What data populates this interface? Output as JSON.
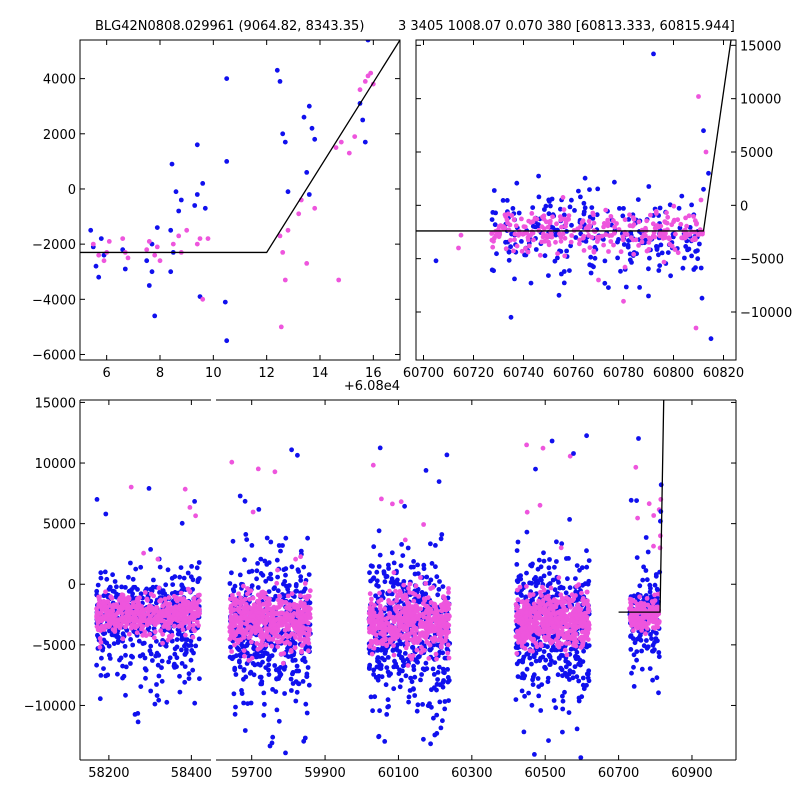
{
  "chart_data": [
    {
      "name": "zoom-panel",
      "type": "scatter",
      "title": "BLG42N0808.029961 (9064.82, 8343.35)",
      "offset_label": "+6.08e4",
      "xlim": [
        5,
        17
      ],
      "ylim": [
        -6200,
        5400
      ],
      "xticks": [
        {
          "value": 6,
          "label": "6"
        },
        {
          "value": 8,
          "label": "8"
        },
        {
          "value": 10,
          "label": "10"
        },
        {
          "value": 12,
          "label": "12"
        },
        {
          "value": 14,
          "label": "14"
        },
        {
          "value": 16,
          "label": "16"
        }
      ],
      "yticks": [
        {
          "value": -6000,
          "label": "−6000"
        },
        {
          "value": -4000,
          "label": "−4000"
        },
        {
          "value": -2000,
          "label": "−2000"
        },
        {
          "value": 0,
          "label": "0"
        },
        {
          "value": 2000,
          "label": "2000"
        },
        {
          "value": 4000,
          "label": "4000"
        }
      ],
      "model": {
        "x": [
          5,
          12,
          17
        ],
        "y": [
          -2300,
          -2300,
          5400
        ]
      },
      "series": [
        {
          "name": "blue",
          "color": "#1010ee",
          "points": [
            [
              5.4,
              -1500
            ],
            [
              5.5,
              -2100
            ],
            [
              5.6,
              -2800
            ],
            [
              5.7,
              -3200
            ],
            [
              5.8,
              -1800
            ],
            [
              5.9,
              -2400
            ],
            [
              6.6,
              -2200
            ],
            [
              6.7,
              -2900
            ],
            [
              7.5,
              -2600
            ],
            [
              7.6,
              -3500
            ],
            [
              7.7,
              -3000
            ],
            [
              7.8,
              -4600
            ],
            [
              7.9,
              -1400
            ],
            [
              7.7,
              -2000
            ],
            [
              8.4,
              -1500
            ],
            [
              8.5,
              -2300
            ],
            [
              8.6,
              -100
            ],
            [
              8.7,
              -800
            ],
            [
              8.8,
              -400
            ],
            [
              8.4,
              -3000
            ],
            [
              8.45,
              900
            ],
            [
              9.3,
              -600
            ],
            [
              9.4,
              -200
            ],
            [
              9.5,
              -3900
            ],
            [
              9.6,
              200
            ],
            [
              9.7,
              -700
            ],
            [
              9.4,
              1600
            ],
            [
              10.45,
              -4100
            ],
            [
              10.5,
              -5500
            ],
            [
              10.5,
              1000
            ],
            [
              10.5,
              4000
            ],
            [
              12.4,
              4300
            ],
            [
              12.6,
              2000
            ],
            [
              12.7,
              1700
            ],
            [
              12.8,
              -100
            ],
            [
              12.5,
              3900
            ],
            [
              13.4,
              2600
            ],
            [
              13.5,
              600
            ],
            [
              13.6,
              3000
            ],
            [
              13.7,
              2200
            ],
            [
              13.8,
              1800
            ],
            [
              13.6,
              -200
            ],
            [
              15.6,
              2500
            ],
            [
              15.7,
              1700
            ],
            [
              15.5,
              3100
            ],
            [
              15.8,
              5400
            ]
          ]
        },
        {
          "name": "pink",
          "color": "#ee55dd",
          "points": [
            [
              5.5,
              -2000
            ],
            [
              5.7,
              -2400
            ],
            [
              5.9,
              -2600
            ],
            [
              6.0,
              -2300
            ],
            [
              6.1,
              -1900
            ],
            [
              6.6,
              -1800
            ],
            [
              6.7,
              -2300
            ],
            [
              6.8,
              -2500
            ],
            [
              7.5,
              -2200
            ],
            [
              7.6,
              -1900
            ],
            [
              7.8,
              -2400
            ],
            [
              7.9,
              -2100
            ],
            [
              8.0,
              -2600
            ],
            [
              8.5,
              -2000
            ],
            [
              8.7,
              -1700
            ],
            [
              8.8,
              -2300
            ],
            [
              9.0,
              -1500
            ],
            [
              9.4,
              -2000
            ],
            [
              9.5,
              -1800
            ],
            [
              9.6,
              -4000
            ],
            [
              9.8,
              -1800
            ],
            [
              12.5,
              -1700
            ],
            [
              12.6,
              -2300
            ],
            [
              12.7,
              -3300
            ],
            [
              12.55,
              -5000
            ],
            [
              12.8,
              -1500
            ],
            [
              13.2,
              -900
            ],
            [
              13.3,
              -400
            ],
            [
              13.5,
              -2700
            ],
            [
              13.8,
              -700
            ],
            [
              14.6,
              1500
            ],
            [
              14.7,
              -3300
            ],
            [
              14.8,
              1700
            ],
            [
              15.1,
              1300
            ],
            [
              15.3,
              1900
            ],
            [
              15.5,
              3600
            ],
            [
              15.7,
              3900
            ],
            [
              15.8,
              4100
            ],
            [
              15.9,
              4200
            ],
            [
              16.0,
              3800
            ]
          ]
        }
      ]
    },
    {
      "name": "mid-panel",
      "type": "scatter",
      "title": "3 3405 1008.07 0.070 380 [60813.333, 60815.944]",
      "xlim": [
        60697,
        60825
      ],
      "ylim": [
        -14500,
        15500
      ],
      "xticks": [
        {
          "value": 60700,
          "label": "60700"
        },
        {
          "value": 60720,
          "label": "60720"
        },
        {
          "value": 60740,
          "label": "60740"
        },
        {
          "value": 60760,
          "label": "60760"
        },
        {
          "value": 60780,
          "label": "60780"
        },
        {
          "value": 60800,
          "label": "60800"
        },
        {
          "value": 60820,
          "label": "60820"
        }
      ],
      "yticks": [
        {
          "value": -10000,
          "label": "−10000"
        },
        {
          "value": -5000,
          "label": "−5000"
        },
        {
          "value": 0,
          "label": "0"
        },
        {
          "value": 5000,
          "label": "5000"
        },
        {
          "value": 10000,
          "label": "10000"
        },
        {
          "value": 15000,
          "label": "15000"
        }
      ],
      "model": {
        "x": [
          60697,
          60812,
          60823
        ],
        "y": [
          -2400,
          -2400,
          15500
        ]
      },
      "cloud": {
        "x_range": [
          60727,
          60812
        ],
        "center": -2500,
        "spread": 2200,
        "count": 260,
        "outlier_low": -10000,
        "outlier_high": 4000
      },
      "extra_points": [
        [
          60792,
          14200
        ],
        [
          60810,
          10200
        ],
        [
          60812,
          7000
        ],
        [
          60813,
          5000
        ],
        [
          60814,
          3000
        ],
        [
          60811,
          500
        ],
        [
          60812,
          1500
        ],
        [
          60780,
          -9000
        ],
        [
          60790,
          -8500
        ],
        [
          60770,
          -7000
        ],
        [
          60735,
          -10500
        ],
        [
          60809,
          -11500
        ],
        [
          60815,
          -12500
        ],
        [
          60714,
          -4000
        ],
        [
          60705,
          -5200
        ],
        [
          60715,
          -2800
        ]
      ]
    },
    {
      "name": "full-panel",
      "type": "scatter",
      "xlim": [
        58130,
        61020
      ],
      "ylim": [
        -14500,
        15200
      ],
      "xticks": [
        {
          "value": 58200,
          "label": "58200"
        },
        {
          "value": 58400,
          "label": "58400"
        },
        {
          "value": 59700,
          "label": "59700"
        },
        {
          "value": 59900,
          "label": "59900"
        },
        {
          "value": 60100,
          "label": "60100"
        },
        {
          "value": 60300,
          "label": "60300"
        },
        {
          "value": 60500,
          "label": "60500"
        },
        {
          "value": 60700,
          "label": "60700"
        },
        {
          "value": 60900,
          "label": "60900"
        }
      ],
      "yticks": [
        {
          "value": -10000,
          "label": "−10000"
        },
        {
          "value": -5000,
          "label": "−5000"
        },
        {
          "value": 0,
          "label": "0"
        },
        {
          "value": 5000,
          "label": "5000"
        },
        {
          "value": 10000,
          "label": "10000"
        },
        {
          "value": 15000,
          "label": "15000"
        }
      ],
      "model": {
        "x": [
          60700,
          60813,
          60823
        ],
        "y": [
          -2300,
          -2300,
          15200
        ]
      },
      "seasons": [
        {
          "x": [
            58170,
            58420
          ],
          "center": -2500,
          "spread": 1800,
          "count": 500
        },
        {
          "x": [
            59640,
            59860
          ],
          "center": -3000,
          "spread": 2600,
          "count": 500
        },
        {
          "x": [
            60020,
            60240
          ],
          "center": -3200,
          "spread": 2800,
          "count": 500
        },
        {
          "x": [
            60420,
            60620
          ],
          "center": -3000,
          "spread": 2600,
          "count": 500
        },
        {
          "x": [
            60730,
            60812
          ],
          "center": -2500,
          "spread": 1500,
          "count": 150
        }
      ],
      "break_gap": [
        58450,
        59600
      ]
    }
  ]
}
